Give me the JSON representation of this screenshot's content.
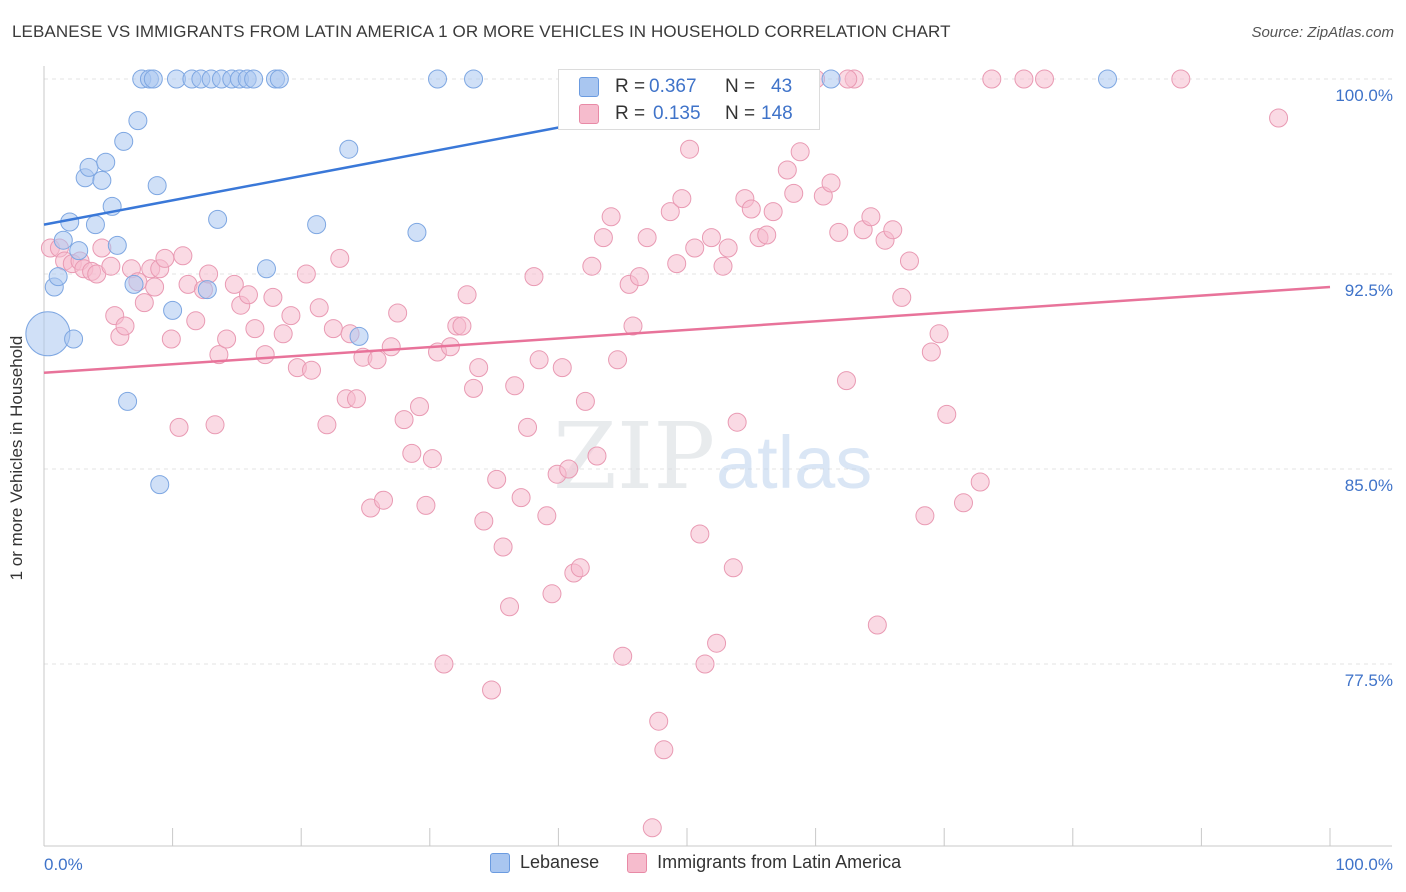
{
  "header": {
    "title": "LEBANESE VS IMMIGRANTS FROM LATIN AMERICA 1 OR MORE VEHICLES IN HOUSEHOLD CORRELATION CHART",
    "source": "Source: ZipAtlas.com"
  },
  "watermark": {
    "zip": "ZIP",
    "atlas": "atlas"
  },
  "stats": [
    {
      "r_label": "R =",
      "r_value": "0.367",
      "n_label": "N =",
      "n_value": "43",
      "color": "#a9c6f0",
      "border": "#6b9be0"
    },
    {
      "r_label": "R =",
      "r_value": "0.135",
      "n_label": "N =",
      "n_value": "148",
      "color": "#f6bccd",
      "border": "#e88aa6"
    }
  ],
  "legend": {
    "lebanese": "Lebanese",
    "latin": "Immigrants from Latin America"
  },
  "chart_data": {
    "type": "scatter",
    "title": "LEBANESE VS IMMIGRANTS FROM LATIN AMERICA 1 OR MORE VEHICLES IN HOUSEHOLD CORRELATION CHART",
    "xlabel": "",
    "ylabel": "1 or more Vehicles in Household",
    "xlim": [
      0,
      100
    ],
    "ylim": [
      70.5,
      100.5
    ],
    "x_tick_labels": [
      "0.0%",
      "100.0%"
    ],
    "y_ticks": [
      100.0,
      92.5,
      85.0,
      77.5
    ],
    "y_tick_labels": [
      "100.0%",
      "92.5%",
      "85.0%",
      "77.5%"
    ],
    "grid": true,
    "colors": {
      "lebanese": "#a9c6f0",
      "lebanese_line": "#3a78d8",
      "latin": "#f6bccd",
      "latin_line": "#e8739a",
      "tick_text": "#3f73c9"
    },
    "series": [
      {
        "name": "Lebanese",
        "trend": {
          "x": [
            0,
            60
          ],
          "y": [
            94.4,
            100.0
          ]
        },
        "points": [
          [
            0.3,
            90.2,
            1
          ],
          [
            0.8,
            92.0,
            0
          ],
          [
            1.1,
            92.4,
            0
          ],
          [
            1.5,
            93.8,
            0
          ],
          [
            2.0,
            94.5,
            0
          ],
          [
            2.3,
            90.0,
            0
          ],
          [
            2.7,
            93.4,
            0
          ],
          [
            3.2,
            96.2,
            0
          ],
          [
            3.5,
            96.6,
            0
          ],
          [
            4.0,
            94.4,
            0
          ],
          [
            4.5,
            96.1,
            0
          ],
          [
            4.8,
            96.8,
            0
          ],
          [
            5.3,
            95.1,
            0
          ],
          [
            5.7,
            93.6,
            0
          ],
          [
            6.2,
            97.6,
            0
          ],
          [
            6.5,
            87.6,
            0
          ],
          [
            7.0,
            92.1,
            0
          ],
          [
            7.3,
            98.4,
            0
          ],
          [
            7.6,
            100.0,
            0
          ],
          [
            8.2,
            100.0,
            0
          ],
          [
            8.5,
            100.0,
            0
          ],
          [
            8.8,
            95.9,
            0
          ],
          [
            9.0,
            84.4,
            0
          ],
          [
            10.0,
            91.1,
            0
          ],
          [
            10.3,
            100.0,
            0
          ],
          [
            11.5,
            100.0,
            0
          ],
          [
            12.2,
            100.0,
            0
          ],
          [
            12.7,
            91.9,
            0
          ],
          [
            13.0,
            100.0,
            0
          ],
          [
            13.5,
            94.6,
            0
          ],
          [
            13.8,
            100.0,
            0
          ],
          [
            14.6,
            100.0,
            0
          ],
          [
            15.2,
            100.0,
            0
          ],
          [
            15.8,
            100.0,
            0
          ],
          [
            16.3,
            100.0,
            0
          ],
          [
            17.3,
            92.7,
            0
          ],
          [
            18.0,
            100.0,
            0
          ],
          [
            18.3,
            100.0,
            0
          ],
          [
            21.2,
            94.4,
            0
          ],
          [
            23.7,
            97.3,
            0
          ],
          [
            24.5,
            90.1,
            0
          ],
          [
            29.0,
            94.1,
            0
          ],
          [
            30.6,
            100.0,
            0
          ],
          [
            33.4,
            100.0,
            0
          ],
          [
            61.2,
            100.0,
            0
          ],
          [
            82.7,
            100.0,
            0
          ]
        ]
      },
      {
        "name": "Immigrants from Latin America",
        "trend": {
          "x": [
            0,
            100
          ],
          "y": [
            88.7,
            92.0
          ]
        },
        "points": [
          [
            0.5,
            93.5
          ],
          [
            1.2,
            93.5
          ],
          [
            1.6,
            93.0
          ],
          [
            2.2,
            92.9
          ],
          [
            2.8,
            93.0
          ],
          [
            3.1,
            92.7
          ],
          [
            3.7,
            92.6
          ],
          [
            4.1,
            92.5
          ],
          [
            4.5,
            93.5
          ],
          [
            5.2,
            92.8
          ],
          [
            5.5,
            90.9
          ],
          [
            5.9,
            90.1
          ],
          [
            6.3,
            90.5
          ],
          [
            6.8,
            92.7
          ],
          [
            7.3,
            92.2
          ],
          [
            7.8,
            91.4
          ],
          [
            8.3,
            92.7
          ],
          [
            8.6,
            92.0
          ],
          [
            9.0,
            92.7
          ],
          [
            9.4,
            93.1
          ],
          [
            9.9,
            90.0
          ],
          [
            10.5,
            86.6
          ],
          [
            10.8,
            93.2
          ],
          [
            11.2,
            92.1
          ],
          [
            11.8,
            90.7
          ],
          [
            12.4,
            91.9
          ],
          [
            12.8,
            92.5
          ],
          [
            13.3,
            86.7
          ],
          [
            13.6,
            89.4
          ],
          [
            14.2,
            90.0
          ],
          [
            14.8,
            92.1
          ],
          [
            15.3,
            91.3
          ],
          [
            15.9,
            91.7
          ],
          [
            16.4,
            90.4
          ],
          [
            17.2,
            89.4
          ],
          [
            17.8,
            91.6
          ],
          [
            18.6,
            90.2
          ],
          [
            19.2,
            90.9
          ],
          [
            19.7,
            88.9
          ],
          [
            20.4,
            92.5
          ],
          [
            20.8,
            88.8
          ],
          [
            21.4,
            91.2
          ],
          [
            22.0,
            86.7
          ],
          [
            22.5,
            90.4
          ],
          [
            23.0,
            93.1
          ],
          [
            23.5,
            87.7
          ],
          [
            23.8,
            90.2
          ],
          [
            24.3,
            87.7
          ],
          [
            24.8,
            89.3
          ],
          [
            25.4,
            83.5
          ],
          [
            25.9,
            89.2
          ],
          [
            26.4,
            83.8
          ],
          [
            27.0,
            89.7
          ],
          [
            27.5,
            91.0
          ],
          [
            28.0,
            86.9
          ],
          [
            28.6,
            85.6
          ],
          [
            29.2,
            87.4
          ],
          [
            29.7,
            83.6
          ],
          [
            30.2,
            85.4
          ],
          [
            30.6,
            89.5
          ],
          [
            31.1,
            77.5
          ],
          [
            31.6,
            89.7
          ],
          [
            32.1,
            90.5
          ],
          [
            32.5,
            90.5
          ],
          [
            32.9,
            91.7
          ],
          [
            33.4,
            88.1
          ],
          [
            33.8,
            88.9
          ],
          [
            34.2,
            83.0
          ],
          [
            34.8,
            76.5
          ],
          [
            35.2,
            84.6
          ],
          [
            35.7,
            82.0
          ],
          [
            36.2,
            79.7
          ],
          [
            36.6,
            88.2
          ],
          [
            37.1,
            83.9
          ],
          [
            37.6,
            86.6
          ],
          [
            38.1,
            92.4
          ],
          [
            38.5,
            89.2
          ],
          [
            39.1,
            83.2
          ],
          [
            39.5,
            80.2
          ],
          [
            39.9,
            84.8
          ],
          [
            40.3,
            88.9
          ],
          [
            40.8,
            85.0
          ],
          [
            41.2,
            81.0
          ],
          [
            41.7,
            81.2
          ],
          [
            42.1,
            87.6
          ],
          [
            42.6,
            92.8
          ],
          [
            43.0,
            85.5
          ],
          [
            43.5,
            93.9
          ],
          [
            44.1,
            94.7
          ],
          [
            44.6,
            89.2
          ],
          [
            45.0,
            77.8
          ],
          [
            45.5,
            92.1
          ],
          [
            45.8,
            90.5
          ],
          [
            46.3,
            92.4
          ],
          [
            46.9,
            93.9
          ],
          [
            47.3,
            71.2
          ],
          [
            47.8,
            75.3
          ],
          [
            48.2,
            74.2
          ],
          [
            48.7,
            94.9
          ],
          [
            49.2,
            92.9
          ],
          [
            49.6,
            95.4
          ],
          [
            50.2,
            97.3
          ],
          [
            50.6,
            93.5
          ],
          [
            51.0,
            82.5
          ],
          [
            51.4,
            77.5
          ],
          [
            51.9,
            93.9
          ],
          [
            52.3,
            78.3
          ],
          [
            52.8,
            92.8
          ],
          [
            53.2,
            93.5
          ],
          [
            53.6,
            81.2
          ],
          [
            53.9,
            86.8
          ],
          [
            54.5,
            95.4
          ],
          [
            55.0,
            95.0
          ],
          [
            55.6,
            93.9
          ],
          [
            56.2,
            94.0
          ],
          [
            56.7,
            94.9
          ],
          [
            57.2,
            100.0
          ],
          [
            57.8,
            96.5
          ],
          [
            58.3,
            95.6
          ],
          [
            58.8,
            97.2
          ],
          [
            59.4,
            99.3
          ],
          [
            60.0,
            100.0
          ],
          [
            60.6,
            95.5
          ],
          [
            61.2,
            96.0
          ],
          [
            61.8,
            94.1
          ],
          [
            62.4,
            88.4
          ],
          [
            63.0,
            100.0
          ],
          [
            63.7,
            94.2
          ],
          [
            64.3,
            94.7
          ],
          [
            64.8,
            79.0
          ],
          [
            65.4,
            93.8
          ],
          [
            66.0,
            94.2
          ],
          [
            66.7,
            91.6
          ],
          [
            67.3,
            93.0
          ],
          [
            68.5,
            83.2
          ],
          [
            69.0,
            89.5
          ],
          [
            69.6,
            90.2
          ],
          [
            70.2,
            87.1
          ],
          [
            71.5,
            83.7
          ],
          [
            72.8,
            84.5
          ],
          [
            73.7,
            100.0
          ],
          [
            76.2,
            100.0
          ],
          [
            88.4,
            100.0
          ],
          [
            96.0,
            98.5
          ],
          [
            77.8,
            100.0
          ],
          [
            62.5,
            100.0
          ]
        ]
      }
    ]
  }
}
